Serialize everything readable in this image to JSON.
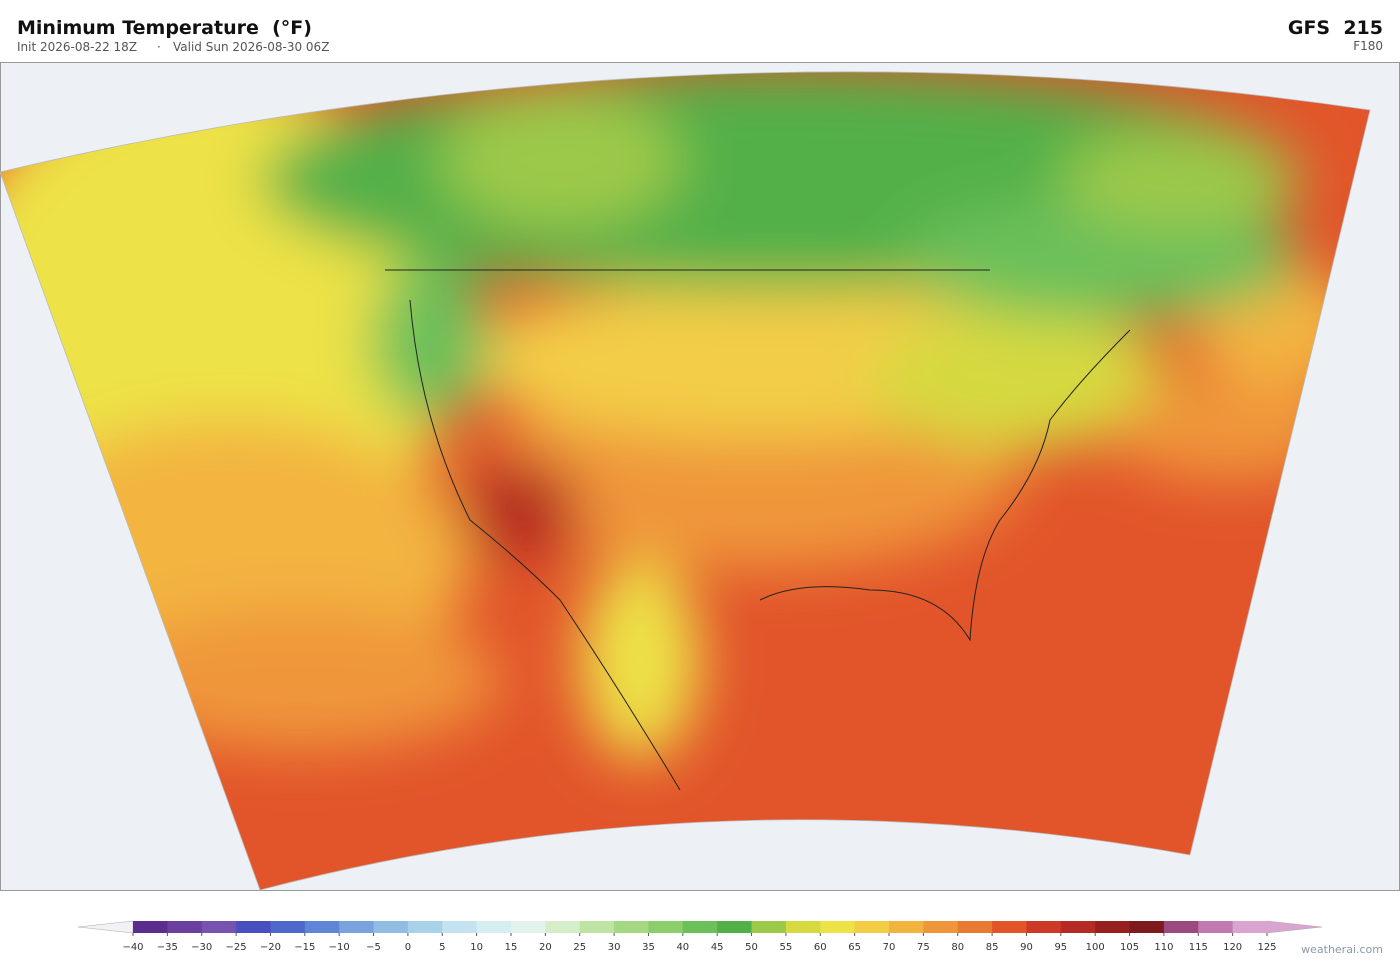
{
  "header": {
    "title": "Minimum Temperature  (°F)",
    "init": "Init 2026-08-22 18Z",
    "separator": "·",
    "valid": "Valid Sun 2026-08-30 06Z",
    "model": "GFS  215",
    "forecast_hour": "F180"
  },
  "colorbar": {
    "ticks": [
      {
        "value": -40,
        "label": "−40"
      },
      {
        "value": -35,
        "label": "−35"
      },
      {
        "value": -30,
        "label": "−30"
      },
      {
        "value": -25,
        "label": "−25"
      },
      {
        "value": -20,
        "label": "−20"
      },
      {
        "value": -15,
        "label": "−15"
      },
      {
        "value": -10,
        "label": "−10"
      },
      {
        "value": -5,
        "label": "−5"
      },
      0,
      5,
      10,
      15,
      20,
      25,
      30,
      35,
      40,
      45,
      50,
      55,
      60,
      65,
      70,
      75,
      80,
      85,
      90,
      95,
      100,
      105,
      110,
      115,
      120,
      125
    ],
    "colors": [
      "#5b2d8e",
      "#6b3fa0",
      "#7653b0",
      "#4a4fc0",
      "#4f66cc",
      "#5f86d6",
      "#7aa2dd",
      "#92bde3",
      "#a9d2ea",
      "#c2e3ef",
      "#d6eef1",
      "#e2f3ec",
      "#d6edca",
      "#bfe3a3",
      "#a4d882",
      "#8ccd6c",
      "#6cc05a",
      "#52b04a",
      "#9cc94a",
      "#d6d93f",
      "#ede246",
      "#f3cd46",
      "#f3b43f",
      "#ef963a",
      "#e97a33",
      "#e2552b",
      "#cc3a27",
      "#b52a24",
      "#97201f",
      "#7d1a1c",
      "#9b4a80",
      "#c07ab0",
      "#d9a5d0"
    ],
    "under_color": "#f3f1f6",
    "over_color": "#d9a5d0"
  },
  "footer": {
    "credit": "weatherai.com"
  }
}
